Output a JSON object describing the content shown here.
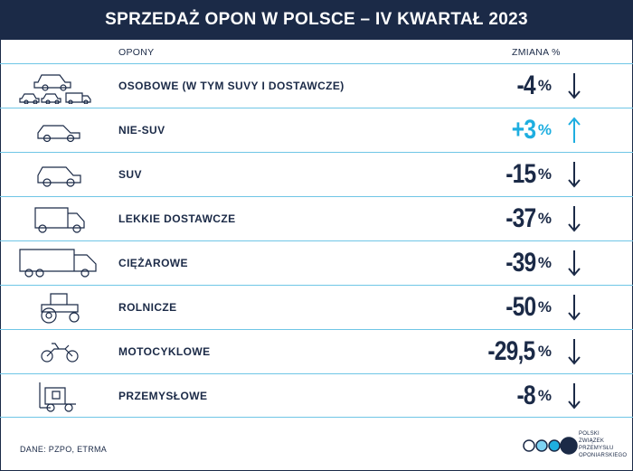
{
  "title": "SPRZEDAŻ OPON W POLSCE – IV KWARTAŁ 2023",
  "columns": {
    "opony": "OPONY",
    "zmiana": "ZMIANA %"
  },
  "rows": [
    {
      "label": "OSOBOWE (W TYM SUVY I DOSTAWCZE)",
      "value": "-4",
      "unit": "%",
      "direction": "down",
      "icon": "car-group-icon"
    },
    {
      "label": "NIE-SUV",
      "value": "+3",
      "unit": "%",
      "direction": "up",
      "icon": "car-icon"
    },
    {
      "label": "SUV",
      "value": "-15",
      "unit": "%",
      "direction": "down",
      "icon": "suv-icon"
    },
    {
      "label": "LEKKIE DOSTAWCZE",
      "value": "-37",
      "unit": "%",
      "direction": "down",
      "icon": "van-icon"
    },
    {
      "label": "CIĘŻAROWE",
      "value": "-39",
      "unit": "%",
      "direction": "down",
      "icon": "truck-icon"
    },
    {
      "label": "ROLNICZE",
      "value": "-50",
      "unit": "%",
      "direction": "down",
      "icon": "tractor-icon"
    },
    {
      "label": "MOTOCYKLOWE",
      "value": "-29,5",
      "unit": "%",
      "direction": "down",
      "icon": "motorcycle-icon"
    },
    {
      "label": "PRZEMYSŁOWE",
      "value": "-8",
      "unit": "%",
      "direction": "down",
      "icon": "forklift-icon"
    }
  ],
  "source": "DANE: PZPO, ETRMA",
  "logo": {
    "lines": [
      "POLSKI",
      "ZWIĄZEK",
      "PRZEMYSŁU",
      "OPONIARSKIEGO"
    ],
    "circle_colors": [
      "#ffffff",
      "#7ed3f2",
      "#1eaee0",
      "#1b2a47"
    ]
  },
  "colors": {
    "navy": "#1b2a47",
    "accent": "#1eaee0",
    "divider": "#6fc6e6"
  }
}
